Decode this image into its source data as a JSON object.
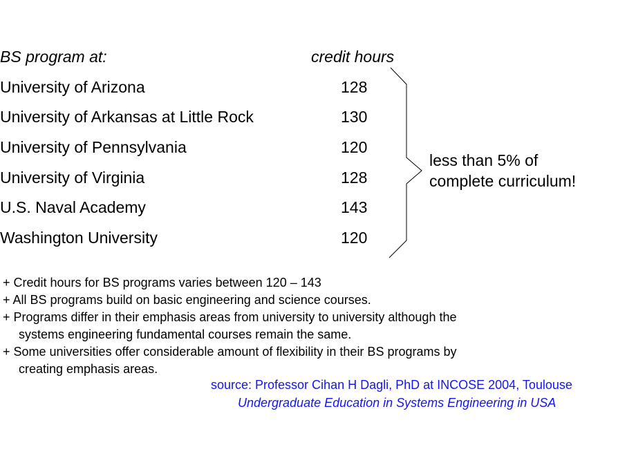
{
  "table": {
    "header_program": "BS program at:",
    "header_hours": "credit hours",
    "rows": [
      {
        "university": "University of Arizona",
        "hours": "128"
      },
      {
        "university": "University of Arkansas at Little Rock",
        "hours": "130"
      },
      {
        "university": "University of Pennsylvania",
        "hours": "120"
      },
      {
        "university": "University of Virginia",
        "hours": "128"
      },
      {
        "university": "U.S. Naval Academy",
        "hours": "143"
      },
      {
        "university": "Washington University",
        "hours": "120"
      }
    ]
  },
  "annotation": {
    "line1": "less than 5% of",
    "line2": "complete curriculum!"
  },
  "bullets": [
    "+ Credit hours for BS programs varies between 120 – 143",
    "+ All BS programs build on basic engineering and science courses.",
    "+ Programs differ in their emphasis areas from university to university although the",
    "systems engineering fundamental courses remain the same.",
    "+ Some universities offer considerable amount of flexibility in their BS programs by",
    "creating emphasis areas."
  ],
  "source": {
    "line1": "source: Professor Cihan H Dagli, PhD at INCOSE 2004, Toulouse",
    "line2": "Undergraduate Education in Systems Engineering in USA",
    "color": "#1515ee"
  }
}
